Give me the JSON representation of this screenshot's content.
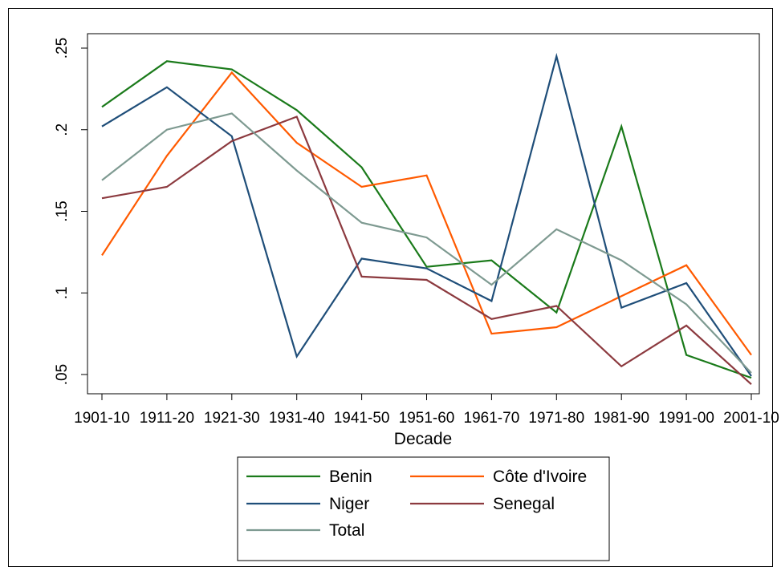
{
  "chart_data": {
    "type": "line",
    "xlabel": "Decade",
    "ylabel": "",
    "categories": [
      "1901-10",
      "1911-20",
      "1921-30",
      "1931-40",
      "1941-50",
      "1951-60",
      "1961-70",
      "1971-80",
      "1981-90",
      "1991-00",
      "2001-10"
    ],
    "ylim": [
      0.05,
      0.25
    ],
    "yticks": [
      0.05,
      0.1,
      0.15,
      0.2,
      0.25
    ],
    "ytick_labels": [
      ".05",
      ".1",
      ".15",
      ".2",
      ".25"
    ],
    "grid": false,
    "legend_position": "bottom",
    "series": [
      {
        "name": "Benin",
        "color": "#1a7a1a",
        "values": [
          0.214,
          0.242,
          0.237,
          0.212,
          0.177,
          0.116,
          0.12,
          0.088,
          0.202,
          0.062,
          0.048
        ]
      },
      {
        "name": "Côte d'Ivoire",
        "color": "#ff5a00",
        "values": [
          0.123,
          0.184,
          0.235,
          0.192,
          0.165,
          0.172,
          0.075,
          0.079,
          0.098,
          0.117,
          0.062
        ]
      },
      {
        "name": "Niger",
        "color": "#1f4e79",
        "values": [
          0.202,
          0.226,
          0.196,
          0.061,
          0.121,
          0.115,
          0.095,
          0.245,
          0.091,
          0.106,
          0.049
        ]
      },
      {
        "name": "Senegal",
        "color": "#8c3a3f",
        "values": [
          0.158,
          0.165,
          0.193,
          0.208,
          0.11,
          0.108,
          0.084,
          0.092,
          0.055,
          0.08,
          0.044
        ]
      },
      {
        "name": "Total",
        "color": "#7e9a91",
        "values": [
          0.169,
          0.2,
          0.21,
          0.175,
          0.143,
          0.134,
          0.105,
          0.139,
          0.12,
          0.093,
          0.051
        ]
      }
    ]
  }
}
